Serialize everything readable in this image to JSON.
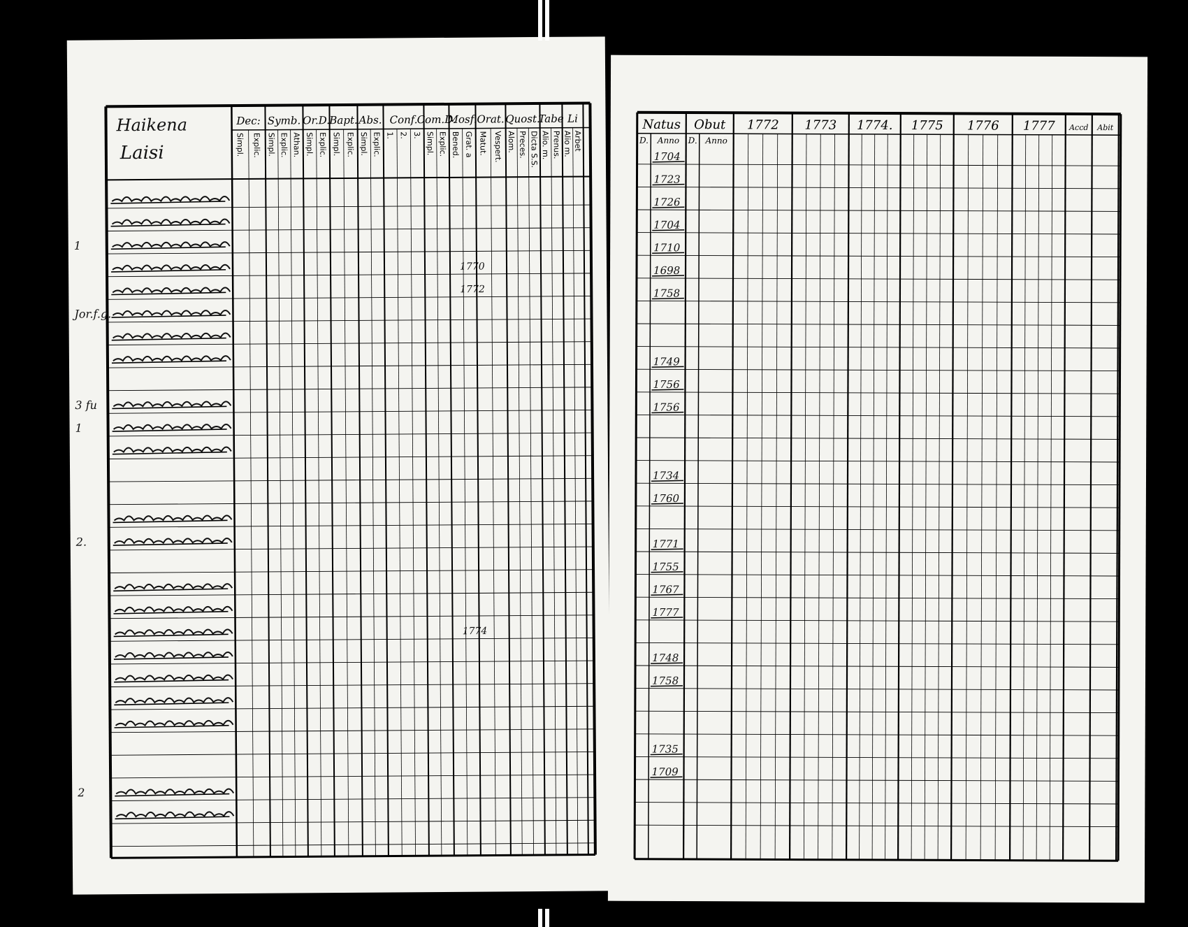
{
  "left_page": {
    "village_heading": [
      "Haikena",
      "Laisi"
    ],
    "column_groups": [
      {
        "label": "Dec:",
        "subs": [
          "Simpl.",
          "Explic."
        ]
      },
      {
        "label": "Symb.",
        "subs": [
          "Simpl.",
          "Explic.",
          "Athan."
        ]
      },
      {
        "label": "Or.D.",
        "subs": [
          "Simpl.",
          "Explic."
        ]
      },
      {
        "label": "Bapt.",
        "subs": [
          "Simpl.",
          "Explic."
        ]
      },
      {
        "label": "Abs.",
        "subs": [
          "Simpl.",
          "Explic."
        ]
      },
      {
        "label": "Conf.",
        "subs": [
          "1.",
          "2.",
          "3."
        ]
      },
      {
        "label": "Com.D.",
        "subs": [
          "Simpl.",
          "Explic."
        ]
      },
      {
        "label": "Mosf.",
        "subs": [
          "Bened.",
          "Grat. a"
        ]
      },
      {
        "label": "Orat.",
        "subs": [
          "Matut.",
          "Vespert."
        ]
      },
      {
        "label": "Quost.",
        "subs": [
          "Alom.",
          "Preces.",
          "Dicta S.S."
        ]
      },
      {
        "label": "Tabe",
        "subs": [
          "Alio. m.",
          "Prenus."
        ]
      },
      {
        "label": "Li",
        "subs": [
          "Alio m.",
          "Arbet"
        ]
      }
    ],
    "row_margin_notes": [
      {
        "row": 2,
        "text": "1"
      },
      {
        "row": 5,
        "text": "Jor.f.g."
      },
      {
        "row": 9,
        "text": "3 fu"
      },
      {
        "row": 10,
        "text": "1"
      },
      {
        "row": 15,
        "text": "2."
      },
      {
        "row": 26,
        "text": "2"
      }
    ],
    "annotations": [
      {
        "row": 3,
        "text": "1770"
      },
      {
        "row": 4,
        "text": "1772"
      },
      {
        "row": 19,
        "text": "1774"
      }
    ]
  },
  "right_page": {
    "column_groups": [
      {
        "label": "Natus",
        "subs": [
          "D.",
          "Anno"
        ]
      },
      {
        "label": "Obut",
        "subs": [
          "D.",
          "Anno"
        ]
      },
      {
        "label": "1772",
        "subs": [
          "",
          "",
          "",
          ""
        ]
      },
      {
        "label": "1773",
        "subs": [
          "",
          "",
          "",
          ""
        ]
      },
      {
        "label": "1774.",
        "subs": [
          "",
          "",
          "",
          ""
        ]
      },
      {
        "label": "1775",
        "subs": [
          "",
          "",
          "",
          ""
        ]
      },
      {
        "label": "1776",
        "subs": [
          "",
          "",
          "",
          ""
        ]
      },
      {
        "label": "1777",
        "subs": [
          "",
          "",
          "",
          ""
        ]
      },
      {
        "label": "Accd",
        "subs": [
          ""
        ]
      },
      {
        "label": "Abit",
        "subs": [
          ""
        ]
      }
    ],
    "birth_years": [
      {
        "row": 0,
        "year": "1704"
      },
      {
        "row": 1,
        "year": "1723"
      },
      {
        "row": 2,
        "year": "1726"
      },
      {
        "row": 3,
        "year": "1704"
      },
      {
        "row": 4,
        "year": "1710"
      },
      {
        "row": 5,
        "year": "1698"
      },
      {
        "row": 6,
        "year": "1758"
      },
      {
        "row": 9,
        "year": "1749"
      },
      {
        "row": 10,
        "year": "1756"
      },
      {
        "row": 11,
        "year": "1756"
      },
      {
        "row": 14,
        "year": "1734"
      },
      {
        "row": 15,
        "year": "1760"
      },
      {
        "row": 17,
        "year": "1771"
      },
      {
        "row": 18,
        "year": "1755"
      },
      {
        "row": 19,
        "year": "1767"
      },
      {
        "row": 20,
        "year": "1777"
      },
      {
        "row": 22,
        "year": "1748"
      },
      {
        "row": 23,
        "year": "1758"
      },
      {
        "row": 26,
        "year": "1735"
      },
      {
        "row": 27,
        "year": "1709"
      }
    ]
  },
  "colors": {
    "paper": "#f4f4f0",
    "ink": "#000000",
    "background": "#000000"
  }
}
